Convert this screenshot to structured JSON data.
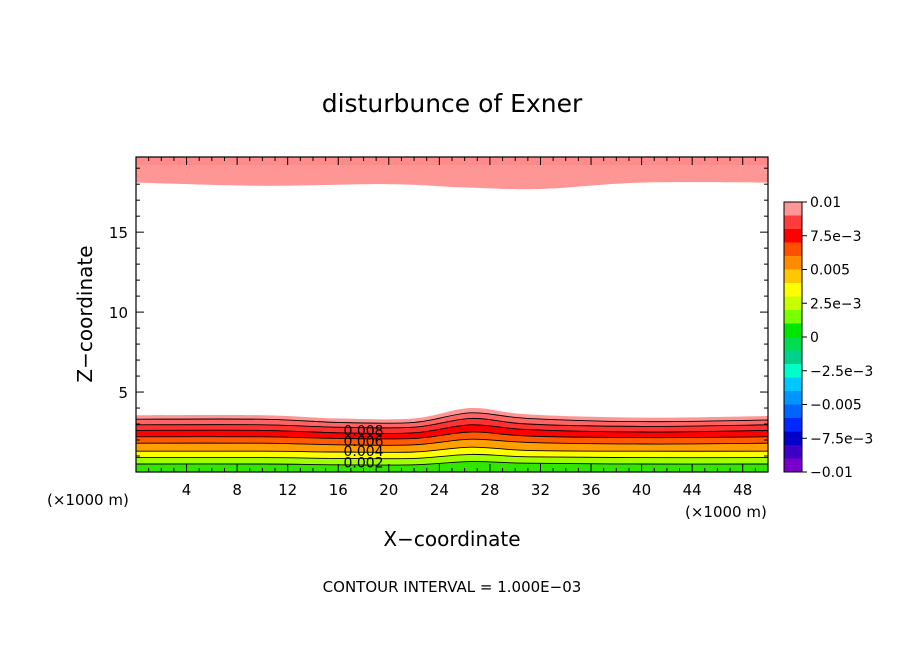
{
  "chart_data": {
    "type": "contour",
    "title": "disturbunce of Exner",
    "xlabel": "X−coordinate",
    "ylabel": "Z−coordinate",
    "x_unit_left": "(×1000 m)",
    "x_unit_right": "(×1000 m)",
    "footer": "CONTOUR INTERVAL = 1.000E−03",
    "xlim": [
      0,
      50
    ],
    "ylim": [
      0,
      19.7
    ],
    "x_ticks": [
      4,
      8,
      12,
      16,
      20,
      24,
      28,
      32,
      36,
      40,
      44,
      48
    ],
    "x_tick_labels": [
      "4",
      "8",
      "12",
      "16",
      "20",
      "24",
      "28",
      "32",
      "36",
      "40",
      "44",
      "48"
    ],
    "y_ticks": [
      5,
      10,
      15
    ],
    "y_tick_labels": [
      "5",
      "10",
      "15"
    ],
    "contour_interval": 0.001,
    "contour_labels": [
      {
        "text": "0.008",
        "x": 18.0,
        "z": 2.6
      },
      {
        "text": "0.006",
        "x": 18.0,
        "z": 1.95
      },
      {
        "text": "0.004",
        "x": 18.0,
        "z": 1.3
      },
      {
        "text": "0.002",
        "x": 18.0,
        "z": 0.6
      }
    ],
    "colorbar": {
      "min": -0.01,
      "max": 0.01,
      "labels": [
        "0.01",
        "7.5e−3",
        "0.005",
        "2.5e−3",
        "0",
        "−2.5e−3",
        "−0.005",
        "−7.5e−3",
        "−0.01"
      ],
      "label_values": [
        0.01,
        0.0075,
        0.005,
        0.0025,
        0,
        -0.0025,
        -0.005,
        -0.0075,
        -0.01
      ],
      "colors_top_to_bottom": [
        "#ff9696",
        "#ff3c3c",
        "#ff0000",
        "#ff5000",
        "#ff8c00",
        "#ffc800",
        "#ffff00",
        "#c8ff00",
        "#78ff00",
        "#00e600",
        "#00dc50",
        "#00d28c",
        "#00ffc8",
        "#00c8ff",
        "#0096ff",
        "#0064ff",
        "#0028ff",
        "#0000c8",
        "#3c00c8",
        "#7800c8"
      ]
    },
    "upper_layer": {
      "color": "#ff9696",
      "bottom_z": [
        [
          0,
          18.1
        ],
        [
          10,
          17.9
        ],
        [
          20,
          18.0
        ],
        [
          26,
          17.8
        ],
        [
          32,
          17.7
        ],
        [
          40,
          18.1
        ],
        [
          50,
          18.1
        ]
      ]
    },
    "lower_bands": [
      {
        "value": 0.0035,
        "color": "#ff9696",
        "top_z": [
          [
            0,
            3.55
          ],
          [
            10,
            3.55
          ],
          [
            16,
            3.35
          ],
          [
            22,
            3.35
          ],
          [
            26.5,
            4.0
          ],
          [
            31,
            3.6
          ],
          [
            40,
            3.4
          ],
          [
            50,
            3.5
          ]
        ]
      },
      {
        "value": 0.003,
        "color": "#ff6464",
        "top_z": [
          [
            0,
            3.3
          ],
          [
            10,
            3.3
          ],
          [
            16,
            3.1
          ],
          [
            22,
            3.1
          ],
          [
            26.5,
            3.7
          ],
          [
            31,
            3.35
          ],
          [
            40,
            3.15
          ],
          [
            50,
            3.25
          ]
        ]
      },
      {
        "value": 0.0025,
        "color": "#ff3232",
        "top_z": [
          [
            0,
            2.95
          ],
          [
            10,
            2.95
          ],
          [
            16,
            2.8
          ],
          [
            22,
            2.8
          ],
          [
            26.5,
            3.35
          ],
          [
            31,
            3.0
          ],
          [
            40,
            2.85
          ],
          [
            50,
            2.95
          ]
        ]
      },
      {
        "value": 0.002,
        "color": "#ff0000",
        "top_z": [
          [
            0,
            2.6
          ],
          [
            10,
            2.6
          ],
          [
            16,
            2.45
          ],
          [
            22,
            2.45
          ],
          [
            26.5,
            2.95
          ],
          [
            31,
            2.65
          ],
          [
            40,
            2.5
          ],
          [
            50,
            2.6
          ]
        ]
      },
      {
        "value": 0.0015,
        "color": "#ff5a00",
        "top_z": [
          [
            0,
            2.2
          ],
          [
            10,
            2.2
          ],
          [
            16,
            2.1
          ],
          [
            22,
            2.1
          ],
          [
            26.5,
            2.5
          ],
          [
            31,
            2.25
          ],
          [
            40,
            2.15
          ],
          [
            50,
            2.2
          ]
        ]
      },
      {
        "value": 0.001,
        "color": "#ffa000",
        "top_z": [
          [
            0,
            1.8
          ],
          [
            10,
            1.8
          ],
          [
            16,
            1.7
          ],
          [
            22,
            1.7
          ],
          [
            26.5,
            2.05
          ],
          [
            31,
            1.85
          ],
          [
            40,
            1.75
          ],
          [
            50,
            1.8
          ]
        ]
      },
      {
        "value": 0.0005,
        "color": "#ffff00",
        "top_z": [
          [
            0,
            1.3
          ],
          [
            10,
            1.3
          ],
          [
            16,
            1.25
          ],
          [
            22,
            1.25
          ],
          [
            26.5,
            1.55
          ],
          [
            31,
            1.35
          ],
          [
            40,
            1.3
          ],
          [
            50,
            1.3
          ]
        ]
      },
      {
        "value": 0.0,
        "color": "#a0ff00",
        "top_z": [
          [
            0,
            0.9
          ],
          [
            10,
            0.9
          ],
          [
            16,
            0.85
          ],
          [
            22,
            0.85
          ],
          [
            26.5,
            1.1
          ],
          [
            31,
            0.95
          ],
          [
            40,
            0.9
          ],
          [
            50,
            0.9
          ]
        ]
      },
      {
        "value": -0.0005,
        "color": "#32e600",
        "top_z": [
          [
            0,
            0.5
          ],
          [
            10,
            0.5
          ],
          [
            16,
            0.45
          ],
          [
            22,
            0.45
          ],
          [
            26.5,
            0.65
          ],
          [
            31,
            0.55
          ],
          [
            40,
            0.5
          ],
          [
            50,
            0.5
          ]
        ]
      }
    ],
    "contour_lines_z": [
      [
        [
          0,
          3.3
        ],
        [
          10,
          3.3
        ],
        [
          16,
          3.1
        ],
        [
          22,
          3.1
        ],
        [
          26.5,
          3.7
        ],
        [
          31,
          3.35
        ],
        [
          40,
          3.15
        ],
        [
          50,
          3.25
        ]
      ],
      [
        [
          0,
          2.95
        ],
        [
          10,
          2.95
        ],
        [
          16,
          2.8
        ],
        [
          22,
          2.8
        ],
        [
          26.5,
          3.35
        ],
        [
          31,
          3.0
        ],
        [
          40,
          2.85
        ],
        [
          50,
          2.95
        ]
      ],
      [
        [
          0,
          2.6
        ],
        [
          10,
          2.6
        ],
        [
          16,
          2.45
        ],
        [
          22,
          2.45
        ],
        [
          26.5,
          2.95
        ],
        [
          31,
          2.65
        ],
        [
          40,
          2.5
        ],
        [
          50,
          2.6
        ]
      ],
      [
        [
          0,
          2.2
        ],
        [
          10,
          2.2
        ],
        [
          16,
          2.1
        ],
        [
          22,
          2.1
        ],
        [
          26.5,
          2.5
        ],
        [
          31,
          2.25
        ],
        [
          40,
          2.15
        ],
        [
          50,
          2.2
        ]
      ],
      [
        [
          0,
          1.8
        ],
        [
          10,
          1.8
        ],
        [
          16,
          1.7
        ],
        [
          22,
          1.7
        ],
        [
          26.5,
          2.05
        ],
        [
          31,
          1.85
        ],
        [
          40,
          1.75
        ],
        [
          50,
          1.8
        ]
      ],
      [
        [
          0,
          1.3
        ],
        [
          10,
          1.3
        ],
        [
          16,
          1.25
        ],
        [
          22,
          1.25
        ],
        [
          26.5,
          1.55
        ],
        [
          31,
          1.35
        ],
        [
          40,
          1.3
        ],
        [
          50,
          1.3
        ]
      ],
      [
        [
          0,
          0.9
        ],
        [
          10,
          0.9
        ],
        [
          16,
          0.85
        ],
        [
          22,
          0.85
        ],
        [
          26.5,
          1.1
        ],
        [
          31,
          0.95
        ],
        [
          40,
          0.9
        ],
        [
          50,
          0.9
        ]
      ],
      [
        [
          0,
          0.5
        ],
        [
          10,
          0.5
        ],
        [
          16,
          0.45
        ],
        [
          22,
          0.45
        ],
        [
          26.5,
          0.65
        ],
        [
          31,
          0.55
        ],
        [
          40,
          0.5
        ],
        [
          50,
          0.5
        ]
      ]
    ]
  }
}
